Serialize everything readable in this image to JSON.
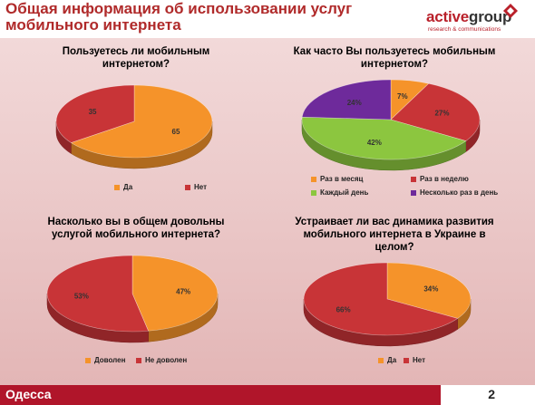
{
  "header": {
    "title": "Общая информация об использовании услуг\nмобильного интернета",
    "logo_active": "active",
    "logo_group": "group",
    "logo_sub": "research & communications"
  },
  "footer": {
    "city": "Одесса",
    "page": "2"
  },
  "colors": {
    "orange": "#f5932a",
    "red": "#c83437",
    "green": "#8cc63f",
    "purple": "#6e2a9b",
    "brand": "#b0152a"
  },
  "chart_data": [
    {
      "type": "pie",
      "title": "Пользуетесь ли мобильным\nинтернетом?",
      "categories": [
        "Да",
        "Нет"
      ],
      "values": [
        65,
        35
      ],
      "labels": [
        "65",
        "35"
      ],
      "colors": [
        "#f5932a",
        "#c83437"
      ],
      "legend": "bottom"
    },
    {
      "type": "pie",
      "title": "Как часто Вы пользуетесь мобильным\nинтернетом?",
      "categories": [
        "Раз в месяц",
        "Раз в неделю",
        "Каждый день",
        "Несколько раз в день"
      ],
      "values": [
        7,
        27,
        42,
        24
      ],
      "labels": [
        "7%",
        "27%",
        "42%",
        "24%"
      ],
      "colors": [
        "#f5932a",
        "#c83437",
        "#8cc63f",
        "#6e2a9b"
      ],
      "legend": "bottom"
    },
    {
      "type": "pie",
      "title": "Насколько вы в общем довольны\nуслугой мобильного интернета?",
      "categories": [
        "Доволен",
        "Не доволен"
      ],
      "values": [
        47,
        53
      ],
      "labels": [
        "47%",
        "53%"
      ],
      "colors": [
        "#f5932a",
        "#c83437"
      ],
      "legend": "bottom"
    },
    {
      "type": "pie",
      "title": "Устраивает ли вас динамика развития\nмобильного интернета в Украине в\nцелом?",
      "categories": [
        "Да",
        "Нет"
      ],
      "values": [
        34,
        66
      ],
      "labels": [
        "34%",
        "66%"
      ],
      "colors": [
        "#f5932a",
        "#c83437"
      ],
      "legend": "bottom"
    }
  ]
}
